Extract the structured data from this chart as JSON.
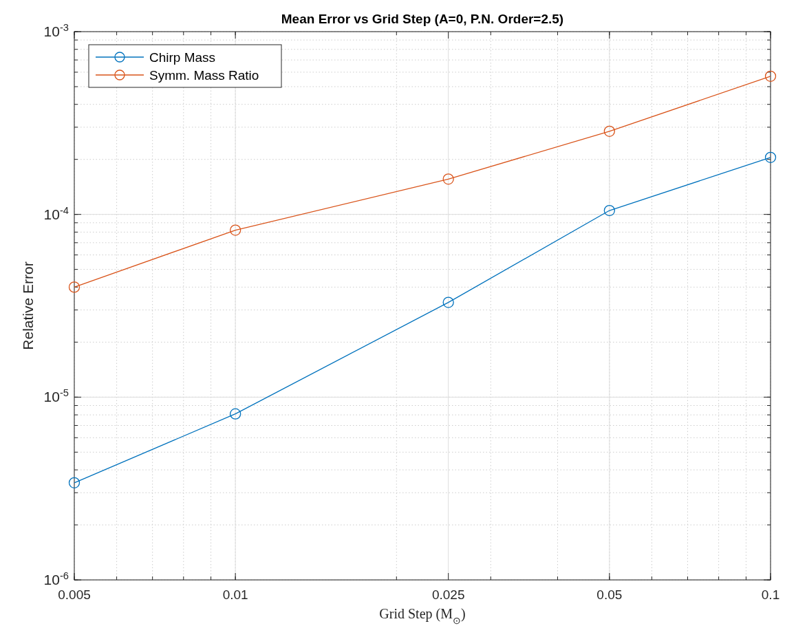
{
  "chart_data": {
    "type": "line",
    "title": "Mean Error vs Grid Step (A=0, P.N. Order=2.5)",
    "xlabel": "Grid Step (M$_{⊙}$)",
    "ylabel": "Relative Error",
    "x": [
      0.005,
      0.01,
      0.025,
      0.05,
      0.1
    ],
    "series": [
      {
        "name": "Chirp Mass",
        "color": "#0072bd",
        "values": [
          3.4e-06,
          8.1e-06,
          3.3e-05,
          0.000105,
          0.000205
        ]
      },
      {
        "name": "Symm. Mass Ratio",
        "color": "#d95319",
        "values": [
          4e-05,
          8.2e-05,
          0.000156,
          0.000285,
          0.00057
        ]
      }
    ],
    "log": "xy",
    "xlim": [
      0.005,
      0.1
    ],
    "xticks": [
      0.005,
      0.01,
      0.025,
      0.05,
      0.1
    ],
    "ylim": [
      1e-06,
      0.001
    ],
    "yticks": [
      {
        "value": 1e-06,
        "label": "10$^{-6}$"
      },
      {
        "value": 1e-05,
        "label": "10$^{-5}$"
      },
      {
        "value": 0.0001,
        "label": "10$^{-4}$"
      },
      {
        "value": 0.001,
        "label": "10$^{-3}$"
      }
    ],
    "grid": true,
    "legend": "top left",
    "marker": "circle",
    "line_style": "solid"
  }
}
